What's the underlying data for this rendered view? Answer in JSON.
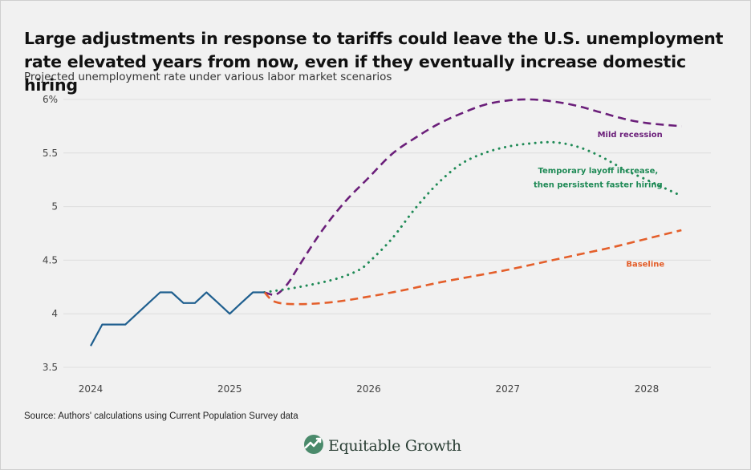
{
  "title": "Large adjustments in response to tariffs could leave the U.S. unemployment rate elevated years from now, even if they eventually increase domestic hiring",
  "subtitle": "Projected unemployment rate under various labor market scenarios",
  "source": "Source: Authors' calculations using Current Population Survey data",
  "brand": {
    "name": "Equitable Growth",
    "icon": "equitable-growth-logo-icon"
  },
  "colors": {
    "historical": "#1f5f8f",
    "baseline": "#e45f2b",
    "temporary": "#1f8a56",
    "recession": "#6b1f7a",
    "grid": "#dedede"
  },
  "chart_data": {
    "type": "line",
    "title": "Large adjustments in response to tariffs could leave the U.S. unemployment rate elevated years from now, even if they eventually increase domestic hiring",
    "subtitle": "Projected unemployment rate under various labor market scenarios",
    "xlabel": "",
    "ylabel": "",
    "xlim": [
      2024.0,
      2028.3
    ],
    "ylim": [
      3.5,
      6.0
    ],
    "x_ticks": [
      2024,
      2025,
      2026,
      2027,
      2028
    ],
    "x_tick_labels": [
      "2024",
      "2025",
      "2026",
      "2027",
      "2028"
    ],
    "y_ticks": [
      3.5,
      4,
      4.5,
      5,
      5.5,
      6
    ],
    "y_tick_labels": [
      "3.5",
      "4",
      "4.5",
      "5",
      "5.5",
      "6%"
    ],
    "grid": true,
    "series": [
      {
        "name": "Historical",
        "style": "solid",
        "color_key": "historical",
        "x": [
          2024.0,
          2024.083,
          2024.167,
          2024.25,
          2024.333,
          2024.417,
          2024.5,
          2024.583,
          2024.667,
          2024.75,
          2024.833,
          2024.917,
          2025.0,
          2025.083,
          2025.167,
          2025.25
        ],
        "y": [
          3.7,
          3.9,
          3.9,
          3.9,
          4.0,
          4.1,
          4.2,
          4.2,
          4.1,
          4.1,
          4.2,
          4.1,
          4.0,
          4.1,
          4.2,
          4.2
        ]
      },
      {
        "name": "Baseline",
        "label": "Baseline",
        "style": "dashed",
        "color_key": "baseline",
        "x": [
          2025.25,
          2025.33,
          2025.5,
          2025.75,
          2026.0,
          2026.25,
          2026.5,
          2026.75,
          2027.0,
          2027.25,
          2027.5,
          2027.75,
          2028.0,
          2028.25
        ],
        "y": [
          4.2,
          4.11,
          4.09,
          4.11,
          4.16,
          4.22,
          4.29,
          4.35,
          4.41,
          4.48,
          4.55,
          4.62,
          4.7,
          4.78
        ]
      },
      {
        "name": "Temporary layoff increase, then persistent faster hiring",
        "label": "Temporary layoff increase, then persistent faster hiring",
        "style": "dotted",
        "color_key": "temporary",
        "x": [
          2025.25,
          2025.5,
          2025.75,
          2025.917,
          2026.0,
          2026.167,
          2026.333,
          2026.5,
          2026.667,
          2026.833,
          2027.0,
          2027.167,
          2027.333,
          2027.5,
          2027.667,
          2027.833,
          2028.0,
          2028.25
        ],
        "y": [
          4.2,
          4.25,
          4.32,
          4.4,
          4.48,
          4.7,
          4.98,
          5.22,
          5.4,
          5.5,
          5.56,
          5.59,
          5.6,
          5.56,
          5.47,
          5.35,
          5.25,
          5.1
        ]
      },
      {
        "name": "Mild recession",
        "label": "Mild recession",
        "style": "dashed",
        "color_key": "recession",
        "x": [
          2025.25,
          2025.333,
          2025.417,
          2025.5,
          2025.667,
          2025.833,
          2026.0,
          2026.167,
          2026.333,
          2026.5,
          2026.667,
          2026.833,
          2027.0,
          2027.167,
          2027.333,
          2027.5,
          2027.667,
          2027.833,
          2028.0,
          2028.25
        ],
        "y": [
          4.2,
          4.18,
          4.28,
          4.45,
          4.78,
          5.05,
          5.27,
          5.49,
          5.64,
          5.77,
          5.87,
          5.95,
          5.99,
          6.0,
          5.98,
          5.94,
          5.88,
          5.82,
          5.78,
          5.75
        ]
      }
    ],
    "annotations": [
      {
        "text": "Mild recession",
        "x": 2027.88,
        "y": 5.65,
        "color_key": "recession"
      },
      {
        "text": "Temporary layoff increase,",
        "x": 2027.65,
        "y": 5.31,
        "color_key": "temporary"
      },
      {
        "text": "then persistent faster hiring",
        "x": 2027.65,
        "y": 5.18,
        "color_key": "temporary"
      },
      {
        "text": "Baseline",
        "x": 2027.99,
        "y": 4.44,
        "color_key": "baseline"
      }
    ]
  }
}
